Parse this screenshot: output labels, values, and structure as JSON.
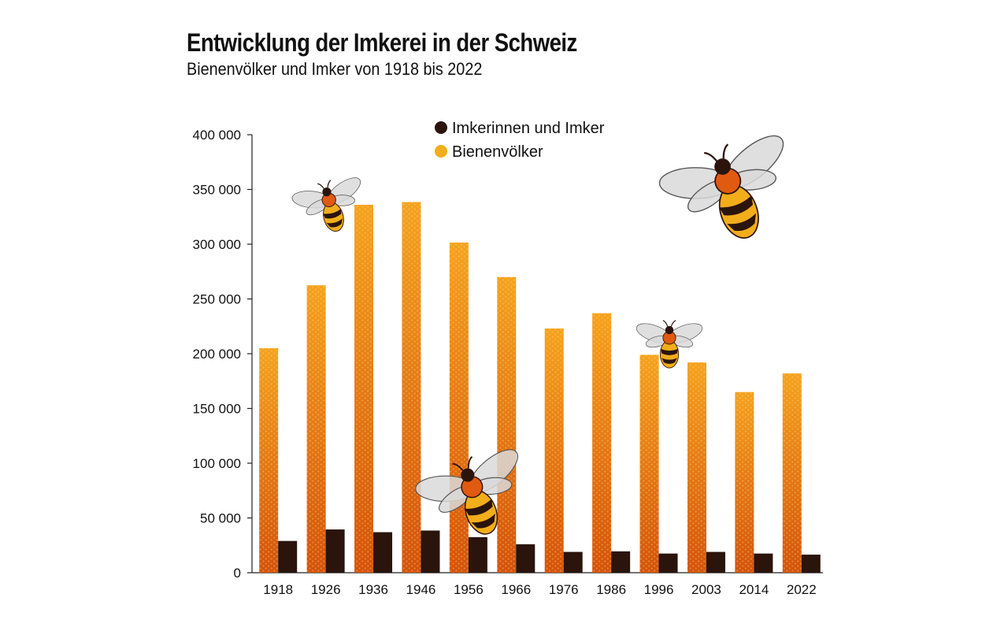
{
  "title": "Entwicklung der Imkerei in der Schweiz",
  "subtitle": "Bienenvölker und Imker von 1918 bis 2022",
  "colors": {
    "bee_colonies_top": "#f5a21e",
    "bee_colonies_bottom": "#d4520a",
    "beekeepers": "#2a140c",
    "legend_beekeepers": "#2a140c",
    "legend_colonies": "#f2ad1a"
  },
  "chart_data": {
    "type": "bar",
    "title": "Entwicklung der Imkerei in der Schweiz",
    "subtitle": "Bienenvölker und Imker von 1918 bis 2022",
    "xlabel": "",
    "ylabel": "",
    "categories": [
      "1918",
      "1926",
      "1936",
      "1946",
      "1956",
      "1966",
      "1976",
      "1986",
      "1996",
      "2003",
      "2014",
      "2022"
    ],
    "series": [
      {
        "name": "Imkerinnen und Imker",
        "values": [
          29000,
          39500,
          37000,
          38500,
          32500,
          26000,
          19000,
          19500,
          17500,
          19000,
          17500,
          16500
        ]
      },
      {
        "name": "Bienenvölker",
        "values": [
          205000,
          262500,
          336000,
          338500,
          301500,
          270000,
          223000,
          237000,
          199000,
          192000,
          165000,
          182000
        ]
      }
    ],
    "ylim": [
      0,
      400000
    ],
    "yticks": [
      0,
      50000,
      100000,
      150000,
      200000,
      250000,
      300000,
      350000,
      400000
    ],
    "ytick_labels": [
      "0",
      "50 000",
      "100 000",
      "150 000",
      "200 000",
      "250 000",
      "300 000",
      "350 000",
      "400 000"
    ],
    "grid": false,
    "legend_position": "top-center"
  }
}
